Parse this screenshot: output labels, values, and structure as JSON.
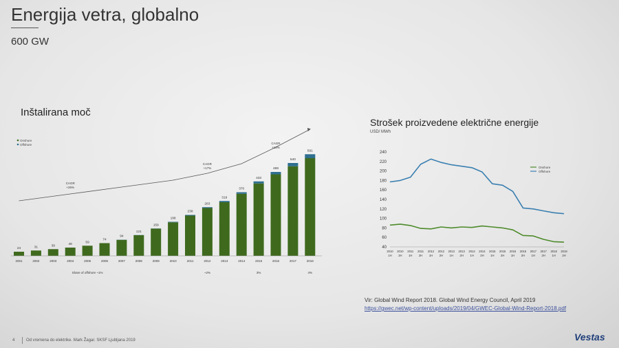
{
  "slide": {
    "title": "Energija vetra, globalno",
    "subtitle": "600 GW",
    "source": "Vir: Global Wind Report 2018. Global Wind Energy Council, April 2019",
    "source_link": "https://gwec.net/wp-content/uploads/2019/04/GWEC-Global-Wind-Report-2018.pdf",
    "page_number": "4",
    "footer": "Od vremena do elektrike. Mark Žagar. SKSF Ljubljana 2019",
    "logo": "Vestas"
  },
  "colors": {
    "onshore_bar": "#3f6a1e",
    "offshore_bar": "#2f6f8f",
    "onshore_line": "#4d8a2a",
    "offshore_line": "#3a7fb0",
    "trend": "#555555"
  },
  "chart_data": [
    {
      "type": "bar",
      "title": "Inštalirana moč",
      "legend": [
        "Onshore",
        "Offshore"
      ],
      "legend_position": "top-left",
      "categories": [
        "2001",
        "2002",
        "2003",
        "2004",
        "2005",
        "2006",
        "2007",
        "2008",
        "2009",
        "2010",
        "2011",
        "2012",
        "2013",
        "2014",
        "2015",
        "2016",
        "2017",
        "2018"
      ],
      "totals": [
        24,
        31,
        39,
        48,
        59,
        74,
        94,
        121,
        159,
        198,
        238,
        283,
        319,
        370,
        433,
        488,
        540,
        591
      ],
      "series": [
        {
          "name": "Onshore",
          "values": [
            24,
            31,
            39,
            48,
            59,
            74,
            93,
            120,
            158,
            195,
            234,
            278,
            312,
            361,
            421,
            474,
            521,
            568
          ]
        },
        {
          "name": "Offshore",
          "values": [
            0,
            0,
            0,
            0,
            0,
            0,
            1,
            1,
            1,
            3,
            4,
            5,
            7,
            9,
            12,
            14,
            19,
            23
          ]
        }
      ],
      "annotations": [
        {
          "title": "CAGR",
          "value": "+26%",
          "category": "2004"
        },
        {
          "title": "CAGR",
          "value": "+17%",
          "category": "2012"
        },
        {
          "title": "CAGR",
          "value": "+13%",
          "category": "2016"
        }
      ],
      "share_labels": [
        {
          "text": "Share of offshore ~1%",
          "category": "2005"
        },
        {
          "text": "~2%",
          "category": "2012"
        },
        {
          "text": "3%",
          "category": "2015"
        },
        {
          "text": "4%",
          "category": "2018"
        }
      ],
      "ylim": [
        0,
        620
      ]
    },
    {
      "type": "line",
      "title": "Strošek proizvedene električne energije",
      "ylabel": "USD/ MWh",
      "x": [
        "2010 1H",
        "2010 2H",
        "2011 1H",
        "2011 2H",
        "2012 1H",
        "2012 2H",
        "2013 1H",
        "2013 2H",
        "2014 1H",
        "2014 2H",
        "2015 1H",
        "2015 2H",
        "2016 1H",
        "2016 2H",
        "2017 1H",
        "2017 2H",
        "2018 1H",
        "2018 2H"
      ],
      "x_top": [
        "2010",
        "2010",
        "2011",
        "2011",
        "2012",
        "2012",
        "2013",
        "2013",
        "2014",
        "2014",
        "2015",
        "2015",
        "2016",
        "2016",
        "2017",
        "2017",
        "2018",
        "2018"
      ],
      "x_bottom": [
        "1H",
        "2H",
        "1H",
        "2H",
        "1H",
        "2H",
        "1H",
        "2H",
        "1H",
        "2H",
        "1H",
        "2H",
        "1H",
        "2H",
        "1H",
        "2H",
        "1H",
        "2H"
      ],
      "yticks": [
        40,
        60,
        80,
        100,
        120,
        140,
        160,
        180,
        200,
        220,
        240
      ],
      "ylim": [
        40,
        240
      ],
      "series": [
        {
          "name": "Onshore",
          "values": [
            86,
            88,
            85,
            79,
            78,
            82,
            80,
            82,
            81,
            84,
            82,
            80,
            76,
            64,
            63,
            56,
            51,
            50
          ]
        },
        {
          "name": "Offshore",
          "values": [
            177,
            180,
            187,
            214,
            225,
            218,
            213,
            210,
            207,
            198,
            173,
            170,
            157,
            122,
            120,
            116,
            112,
            110
          ]
        }
      ],
      "legend_position": "right"
    }
  ]
}
